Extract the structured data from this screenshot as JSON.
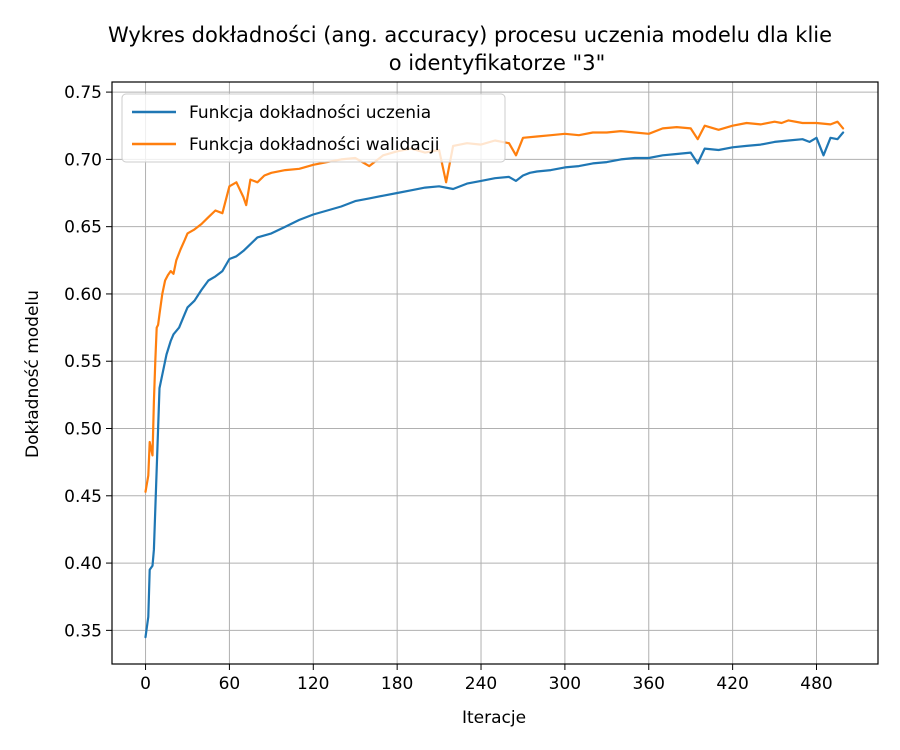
{
  "chart_data": {
    "type": "line",
    "title_lines": [
      "Wykres dokładności (ang. accuracy) procesu uczenia modelu dla klie",
      "o identyfikatorze \"3\""
    ],
    "xlabel": "Iteracje",
    "ylabel": "Dokładność modelu",
    "xlim": [
      -24,
      524
    ],
    "ylim": [
      0.325,
      0.7575
    ],
    "x_ticks": [
      0,
      60,
      120,
      180,
      240,
      300,
      360,
      420,
      480
    ],
    "x_tick_labels": [
      "0",
      "60",
      "120",
      "180",
      "240",
      "300",
      "360",
      "420",
      "480"
    ],
    "y_ticks": [
      0.35,
      0.4,
      0.45,
      0.5,
      0.55,
      0.6,
      0.65,
      0.7,
      0.75
    ],
    "y_tick_labels": [
      "0.35",
      "0.40",
      "0.45",
      "0.50",
      "0.55",
      "0.60",
      "0.65",
      "0.70",
      "0.75"
    ],
    "grid": true,
    "legend_position": "top-left",
    "series": [
      {
        "name": "Funkcja dokładności uczenia",
        "color": "#1f77b4",
        "x": [
          0,
          2,
          3,
          5,
          6,
          8,
          9,
          10,
          12,
          15,
          18,
          20,
          24,
          28,
          30,
          35,
          40,
          45,
          50,
          55,
          60,
          65,
          70,
          75,
          80,
          90,
          100,
          110,
          120,
          130,
          140,
          150,
          160,
          170,
          180,
          190,
          200,
          210,
          220,
          230,
          240,
          250,
          260,
          265,
          270,
          275,
          280,
          290,
          300,
          310,
          320,
          330,
          340,
          350,
          360,
          370,
          380,
          390,
          395,
          400,
          410,
          420,
          430,
          440,
          450,
          460,
          470,
          475,
          480,
          485,
          490,
          495,
          499
        ],
        "y": [
          0.345,
          0.36,
          0.395,
          0.398,
          0.41,
          0.47,
          0.5,
          0.53,
          0.54,
          0.555,
          0.565,
          0.57,
          0.575,
          0.585,
          0.59,
          0.595,
          0.603,
          0.61,
          0.613,
          0.617,
          0.626,
          0.628,
          0.632,
          0.637,
          0.642,
          0.645,
          0.65,
          0.655,
          0.659,
          0.662,
          0.665,
          0.669,
          0.671,
          0.673,
          0.675,
          0.677,
          0.679,
          0.68,
          0.678,
          0.682,
          0.684,
          0.686,
          0.687,
          0.684,
          0.688,
          0.69,
          0.691,
          0.692,
          0.694,
          0.695,
          0.697,
          0.698,
          0.7,
          0.701,
          0.701,
          0.703,
          0.704,
          0.705,
          0.697,
          0.708,
          0.707,
          0.709,
          0.71,
          0.711,
          0.713,
          0.714,
          0.715,
          0.713,
          0.716,
          0.703,
          0.716,
          0.715,
          0.72
        ]
      },
      {
        "name": "Funkcja dokładności walidacji",
        "color": "#ff7f0e",
        "x": [
          0,
          2,
          3,
          5,
          6,
          7,
          8,
          9,
          10,
          12,
          14,
          16,
          18,
          20,
          22,
          25,
          28,
          30,
          35,
          40,
          45,
          50,
          55,
          60,
          65,
          70,
          72,
          75,
          80,
          85,
          90,
          100,
          110,
          120,
          130,
          140,
          150,
          160,
          170,
          180,
          190,
          200,
          210,
          215,
          220,
          230,
          240,
          250,
          260,
          265,
          270,
          280,
          290,
          300,
          310,
          320,
          330,
          340,
          350,
          360,
          370,
          380,
          390,
          395,
          400,
          410,
          420,
          430,
          440,
          450,
          455,
          460,
          470,
          480,
          490,
          495,
          499
        ],
        "y": [
          0.453,
          0.465,
          0.49,
          0.48,
          0.52,
          0.55,
          0.575,
          0.577,
          0.585,
          0.6,
          0.61,
          0.614,
          0.617,
          0.615,
          0.625,
          0.633,
          0.64,
          0.645,
          0.648,
          0.652,
          0.657,
          0.662,
          0.66,
          0.68,
          0.683,
          0.672,
          0.666,
          0.685,
          0.683,
          0.688,
          0.69,
          0.692,
          0.693,
          0.696,
          0.698,
          0.7,
          0.701,
          0.695,
          0.703,
          0.706,
          0.708,
          0.705,
          0.707,
          0.683,
          0.71,
          0.712,
          0.711,
          0.714,
          0.712,
          0.703,
          0.716,
          0.717,
          0.718,
          0.719,
          0.718,
          0.72,
          0.72,
          0.721,
          0.72,
          0.719,
          0.723,
          0.724,
          0.723,
          0.715,
          0.725,
          0.722,
          0.725,
          0.727,
          0.726,
          0.728,
          0.727,
          0.729,
          0.727,
          0.727,
          0.726,
          0.728,
          0.723
        ]
      }
    ]
  }
}
